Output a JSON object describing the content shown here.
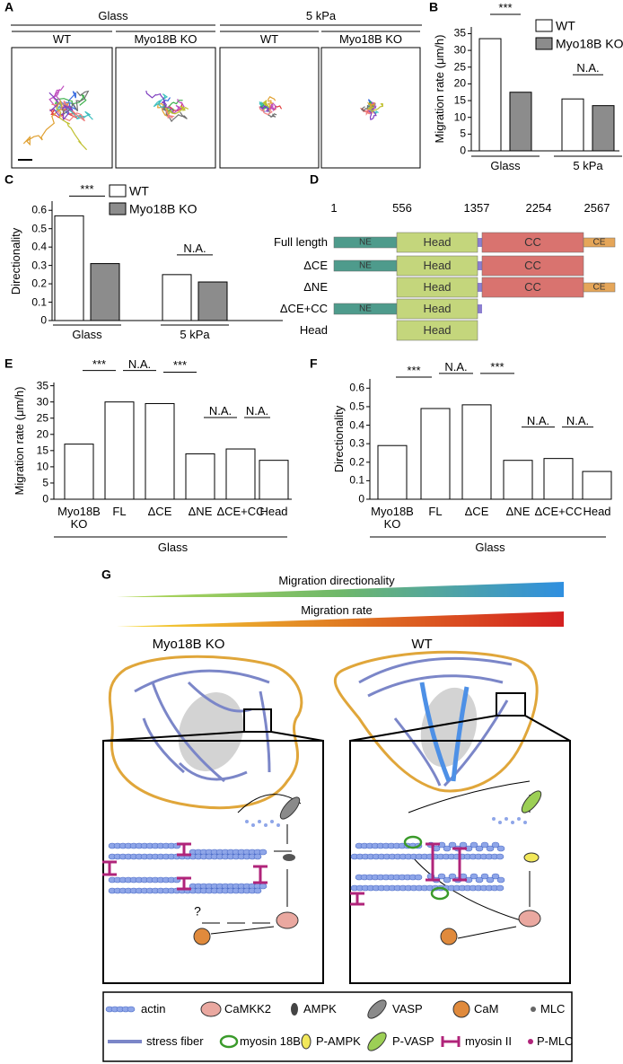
{
  "panel_labels": [
    "A",
    "B",
    "C",
    "D",
    "E",
    "F",
    "G"
  ],
  "panel_a": {
    "groups": [
      "Glass",
      "5 kPa"
    ],
    "conditions": [
      "WT",
      "Myo18B KO",
      "WT",
      "Myo18B KO"
    ]
  },
  "chart_data": [
    {
      "type": "bar",
      "ylabel": "Migration rate (μm/h)",
      "categories": [
        "Glass",
        "5 kPa"
      ],
      "series": [
        {
          "name": "WT",
          "color": "#ffffff",
          "values": [
            33.5,
            15.5
          ]
        },
        {
          "name": "Myo18B KO",
          "color": "#8c8c8c",
          "values": [
            17.5,
            13.5
          ]
        }
      ],
      "ylim": [
        0,
        37
      ],
      "yticks": [
        0,
        5,
        10,
        15,
        20,
        25,
        30,
        35
      ],
      "comparisons": [
        "***",
        "N.A."
      ]
    },
    {
      "type": "bar",
      "ylabel": "Directionality",
      "categories": [
        "Glass",
        "5 kPa"
      ],
      "series": [
        {
          "name": "WT",
          "color": "#ffffff",
          "values": [
            0.57,
            0.25
          ]
        },
        {
          "name": "Myo18B KO",
          "color": "#8c8c8c",
          "values": [
            0.31,
            0.21
          ]
        }
      ],
      "ylim": [
        0,
        0.65
      ],
      "yticks": [
        0,
        0.1,
        0.2,
        0.3,
        0.4,
        0.5,
        0.6
      ],
      "comparisons": [
        "***",
        "N.A."
      ]
    },
    {
      "type": "bar",
      "ylabel": "Migration rate (μm/h)",
      "xlabel": "Glass",
      "categories": [
        "Myo18B\nKO",
        "FL",
        "ΔCE",
        "ΔNE",
        "ΔCE+CC",
        "Head"
      ],
      "values": [
        17,
        30,
        29.5,
        14,
        15.5,
        12
      ],
      "color": "#ffffff",
      "ylim": [
        0,
        36
      ],
      "yticks": [
        0,
        5,
        10,
        15,
        20,
        25,
        30,
        35
      ],
      "comparisons": [
        "***",
        "N.A.",
        "***",
        "N.A.",
        "N.A."
      ]
    },
    {
      "type": "bar",
      "ylabel": "Directionality",
      "xlabel": "Glass",
      "categories": [
        "Myo18B\nKO",
        "FL",
        "ΔCE",
        "ΔNE",
        "ΔCE+CC",
        "Head"
      ],
      "values": [
        0.29,
        0.49,
        0.51,
        0.21,
        0.22,
        0.15
      ],
      "color": "#ffffff",
      "ylim": [
        0,
        0.65
      ],
      "yticks": [
        0,
        0.1,
        0.2,
        0.3,
        0.4,
        0.5,
        0.6
      ],
      "comparisons": [
        "***",
        "N.A.",
        "***",
        "N.A.",
        "N.A."
      ]
    }
  ],
  "panel_d": {
    "positions": [
      1,
      556,
      1357,
      2254,
      2567
    ],
    "constructs": [
      {
        "name": "Full length",
        "domains": [
          "NE",
          "Head",
          "CC",
          "CE"
        ]
      },
      {
        "name": "ΔCE",
        "domains": [
          "NE",
          "Head",
          "CC"
        ]
      },
      {
        "name": "ΔNE",
        "domains": [
          "Head",
          "CC",
          "CE"
        ]
      },
      {
        "name": "ΔCE+CC",
        "domains": [
          "NE",
          "Head"
        ]
      },
      {
        "name": "Head",
        "domains": [
          "Head"
        ]
      }
    ]
  },
  "panel_g": {
    "gradients": [
      "Migration directionality",
      "Migration rate"
    ],
    "cells": [
      "Myo18B KO",
      "WT"
    ],
    "question": "?",
    "legend": [
      "actin",
      "CaMKK2",
      "AMPK",
      "VASP",
      "CaM",
      "MLC",
      "stress fiber",
      "myosin 18B",
      "P-AMPK",
      "P-VASP",
      "myosin II",
      "P-MLC"
    ]
  }
}
